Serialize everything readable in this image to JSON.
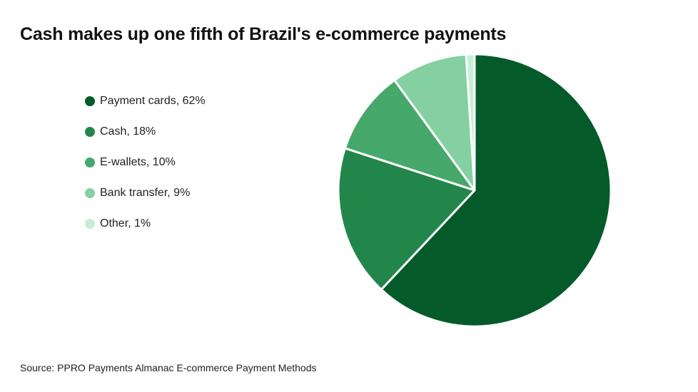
{
  "chart_data": {
    "type": "pie",
    "title": "Cash makes up one fifth of Brazil's e-commerce payments",
    "source": "Source: PPRO Payments Almanac E-commerce Payment Methods",
    "legend_position": "left",
    "slices": [
      {
        "label": "Payment cards, 62%",
        "value": 62,
        "color": "#045a29"
      },
      {
        "label": "Cash, 18%",
        "value": 18,
        "color": "#22864a"
      },
      {
        "label": "E-wallets, 10%",
        "value": 10,
        "color": "#47a86b"
      },
      {
        "label": "Bank transfer, 9%",
        "value": 9,
        "color": "#84d0a0"
      },
      {
        "label": "Other, 1%",
        "value": 1,
        "color": "#c9eed6"
      }
    ]
  }
}
